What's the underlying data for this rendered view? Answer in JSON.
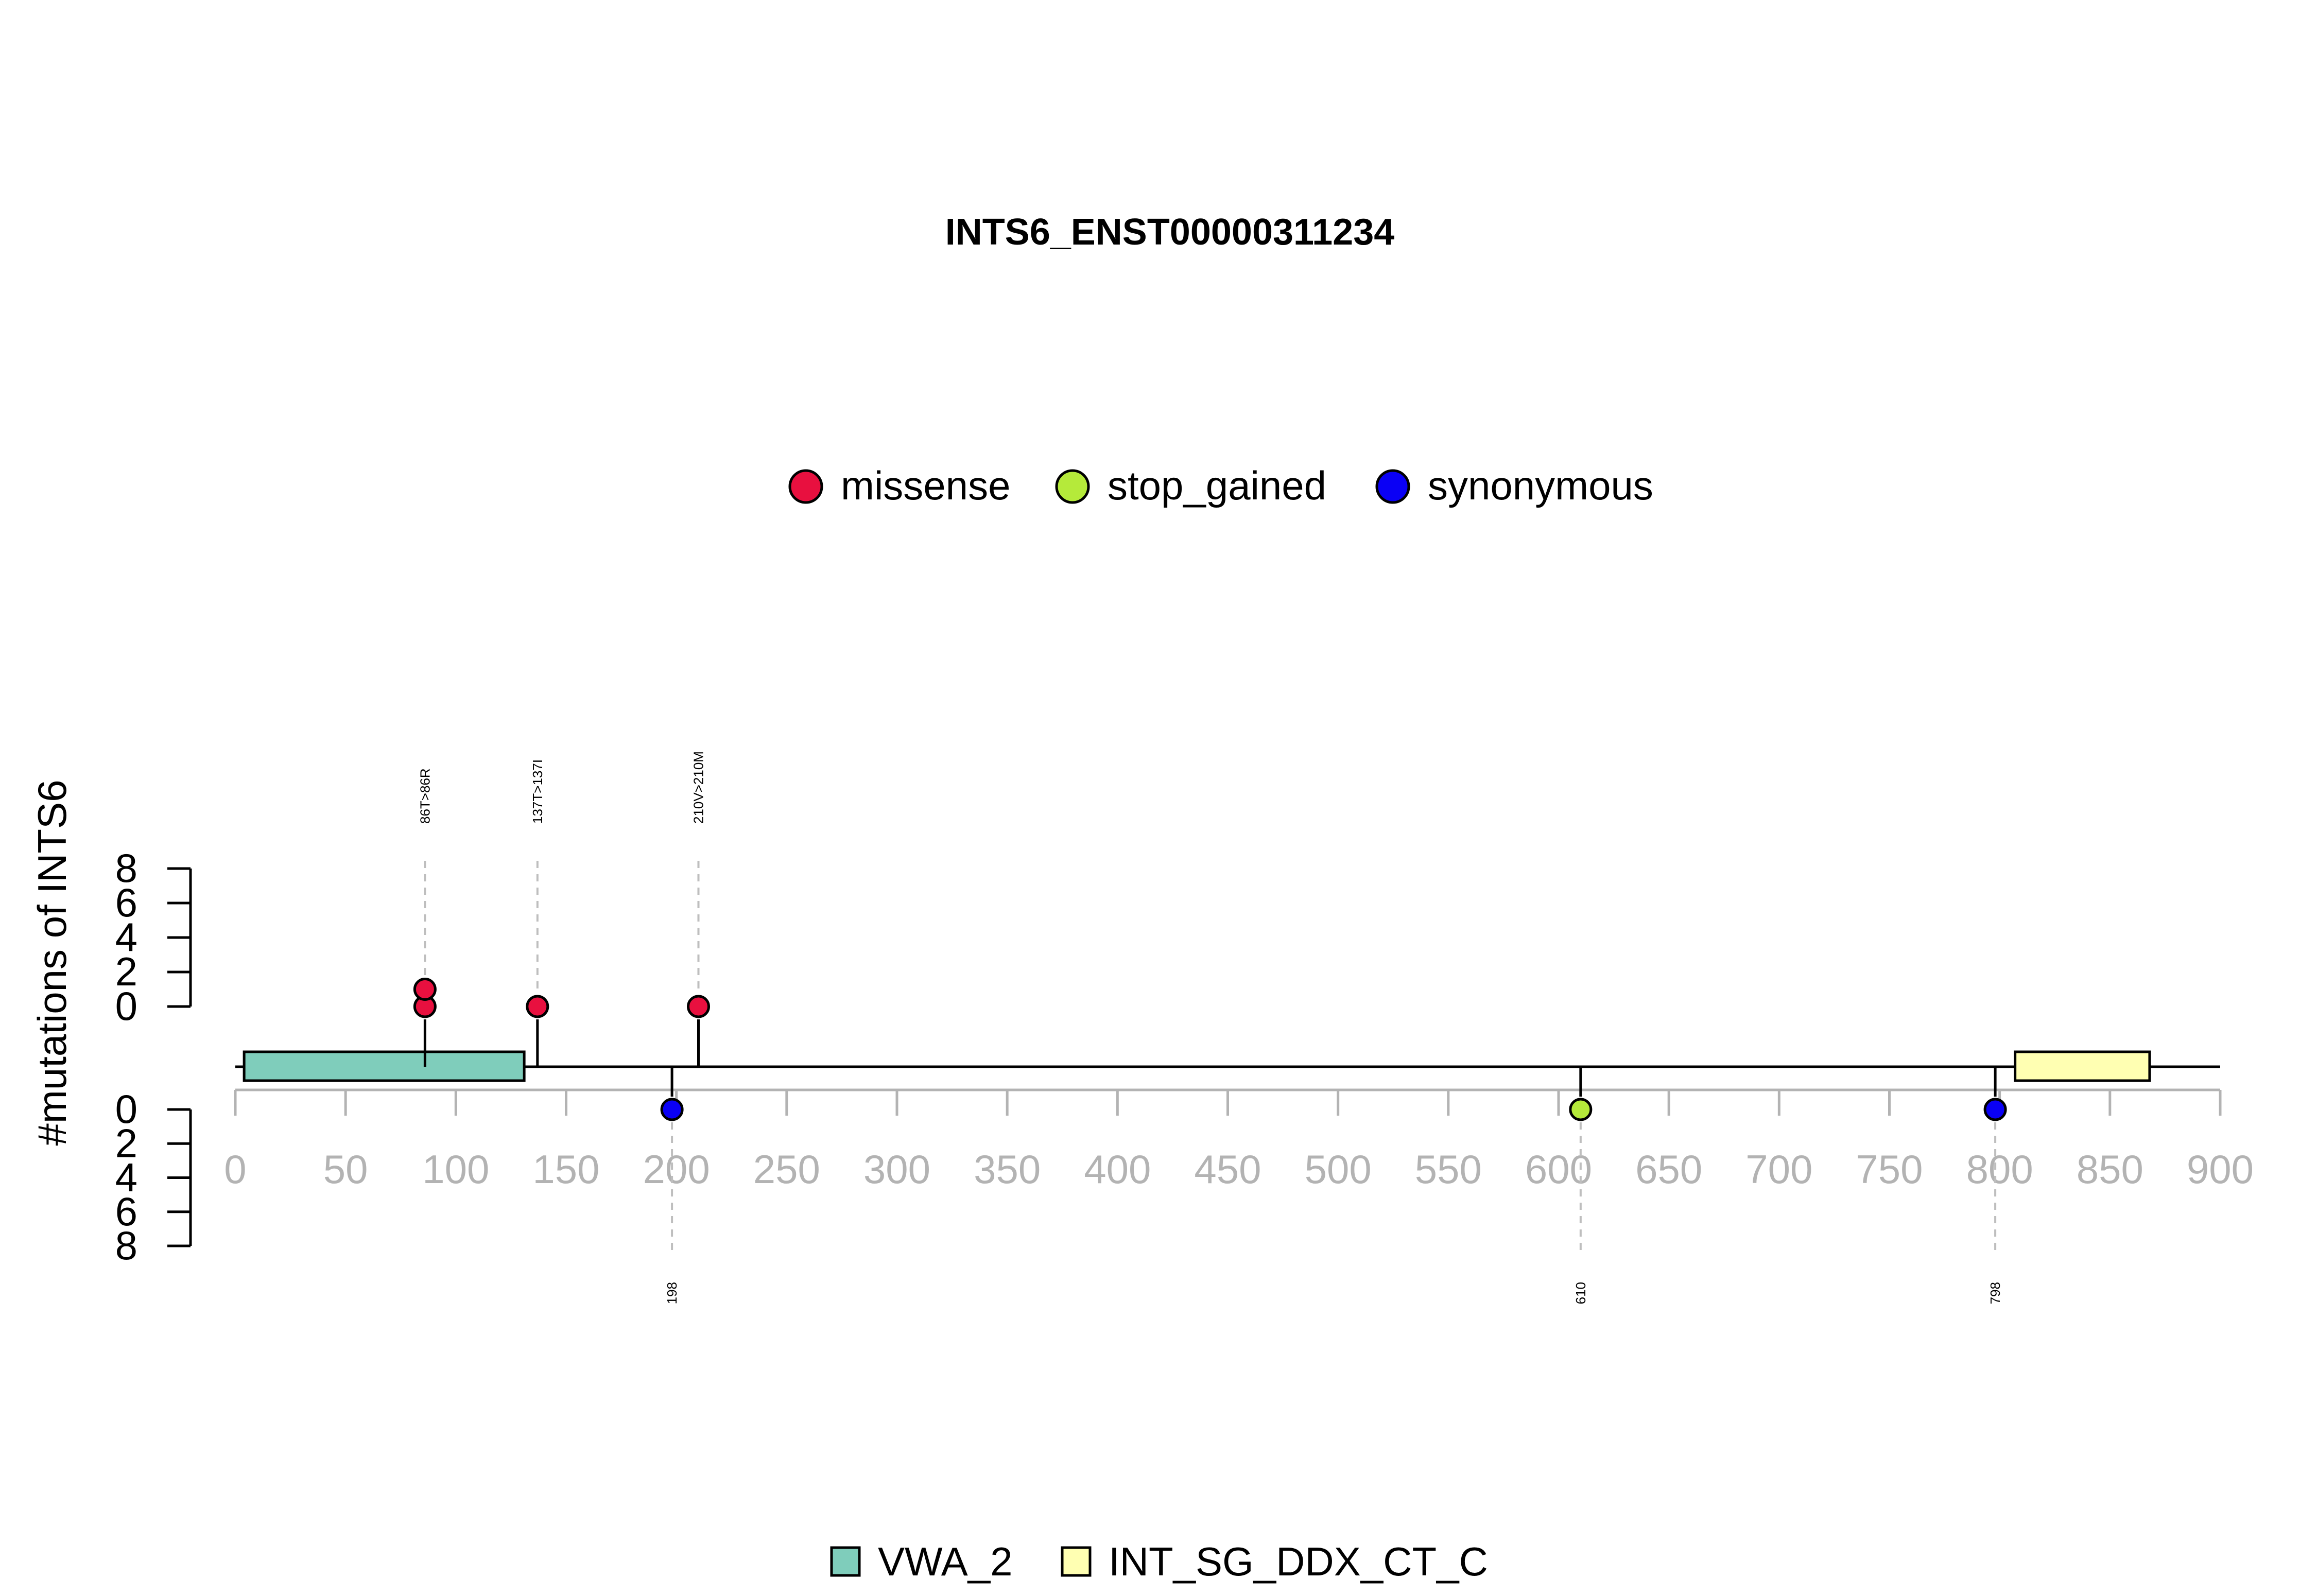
{
  "chart_data": {
    "type": "lollipop",
    "title": "INTS6_ENST00000311234",
    "ylabel": "#mutations of INTS6",
    "xlim": [
      0,
      900
    ],
    "x_ticks": [
      0,
      50,
      100,
      150,
      200,
      250,
      300,
      350,
      400,
      450,
      500,
      550,
      600,
      650,
      700,
      750,
      800,
      850,
      900
    ],
    "y_ticks_top": [
      0,
      2,
      4,
      6,
      8
    ],
    "y_ticks_bottom": [
      0,
      2,
      4,
      6,
      8
    ],
    "ylim": [
      0,
      8
    ],
    "protein_length": 900,
    "legend_mutations": [
      {
        "name": "missense",
        "color": "#E8103F"
      },
      {
        "name": "stop_gained",
        "color": "#B5EA3A"
      },
      {
        "name": "synonymous",
        "color": "#0A00F5"
      }
    ],
    "domains": [
      {
        "name": "VWA_2",
        "start": 4,
        "end": 131,
        "color": "#7FCDBB"
      },
      {
        "name": "INT_SG_DDX_CT_C",
        "start": 807,
        "end": 868,
        "color": "#FFFFB2"
      }
    ],
    "mutations_top": [
      {
        "position": 86,
        "label": "86T>86R",
        "type": "missense",
        "count": 2
      },
      {
        "position": 137,
        "label": "137T>137I",
        "type": "missense",
        "count": 1
      },
      {
        "position": 210,
        "label": "210V>210M",
        "type": "missense",
        "count": 1
      }
    ],
    "mutations_bottom": [
      {
        "position": 198,
        "label": "198",
        "type": "synonymous",
        "count": 1
      },
      {
        "position": 610,
        "label": "610",
        "type": "stop_gained",
        "count": 1
      },
      {
        "position": 798,
        "label": "798",
        "type": "synonymous",
        "count": 1
      }
    ]
  }
}
